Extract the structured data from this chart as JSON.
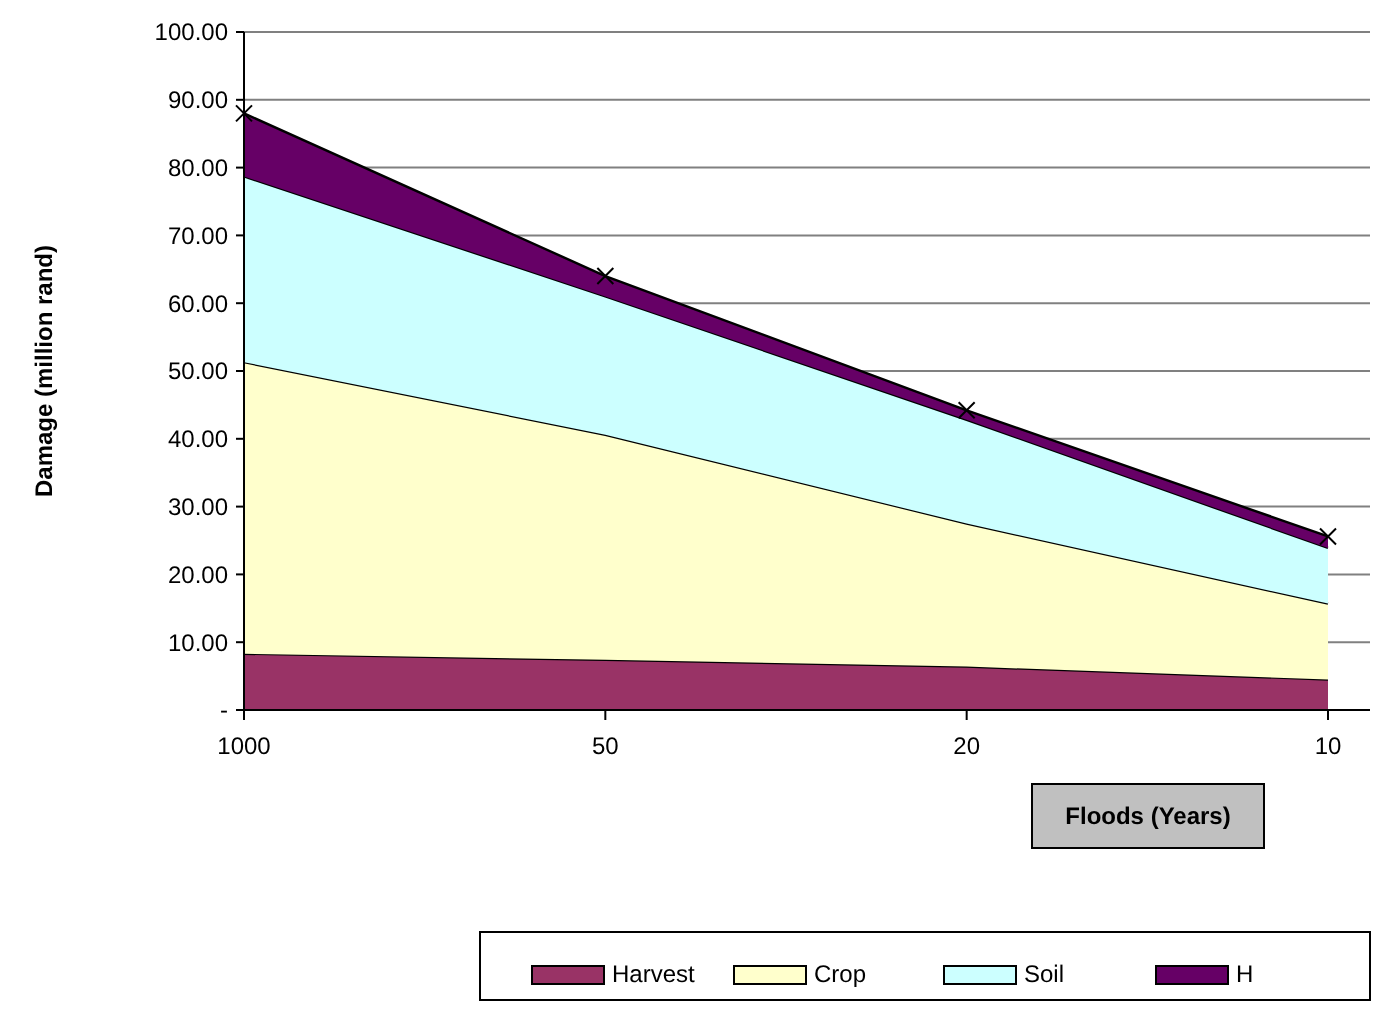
{
  "chart_data": {
    "type": "area",
    "stacked": true,
    "xlabel": "Floods (Years)",
    "ylabel": "Damage (million rand)",
    "categories": [
      "1000",
      "50",
      "20",
      "10"
    ],
    "series": [
      {
        "name": "Harvest",
        "color": "#993366",
        "values": [
          8.3,
          7.4,
          6.4,
          4.5
        ]
      },
      {
        "name": "Crop",
        "color": "#ffffcc",
        "values": [
          43.0,
          33.2,
          21.1,
          11.2
        ]
      },
      {
        "name": "Soil",
        "color": "#ccffff",
        "values": [
          27.4,
          20.4,
          15.3,
          8.2
        ]
      },
      {
        "name": "H",
        "color": "#660066",
        "values": [
          9.3,
          3.0,
          1.4,
          1.7
        ],
        "marker": "cross"
      }
    ],
    "ylim": [
      0,
      100
    ],
    "yticks": [
      {
        "value": 0,
        "label": "-"
      },
      {
        "value": 10,
        "label": "10.00"
      },
      {
        "value": 20,
        "label": "20.00"
      },
      {
        "value": 30,
        "label": "30.00"
      },
      {
        "value": 40,
        "label": "40.00"
      },
      {
        "value": 50,
        "label": "50.00"
      },
      {
        "value": 60,
        "label": "60.00"
      },
      {
        "value": 70,
        "label": "70.00"
      },
      {
        "value": 80,
        "label": "80.00"
      },
      {
        "value": 90,
        "label": "90.00"
      },
      {
        "value": 100,
        "label": "100.00"
      }
    ],
    "grid": "y",
    "legend": "bottom"
  }
}
